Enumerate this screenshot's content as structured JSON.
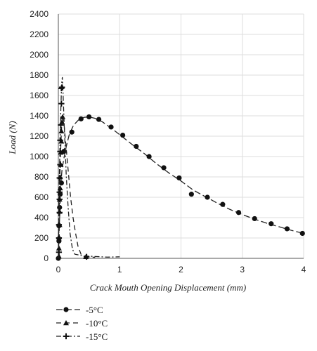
{
  "chart_data": {
    "type": "line",
    "title": "",
    "xlabel": "Crack Mouth Opening Displacement (mm)",
    "ylabel": "Load (N)",
    "xlim": [
      0,
      4
    ],
    "ylim": [
      0,
      2400
    ],
    "xticks": [
      0,
      1,
      2,
      3,
      4
    ],
    "yticks": [
      0,
      200,
      400,
      600,
      800,
      1000,
      1200,
      1400,
      1600,
      1800,
      2000,
      2200,
      2400
    ],
    "grid": true,
    "legend": "bottom-left",
    "series": [
      {
        "name": "-5°C",
        "marker": "circle",
        "dash": "dash",
        "curve": [
          [
            0,
            0
          ],
          [
            0.01,
            200
          ],
          [
            0.02,
            380
          ],
          [
            0.03,
            560
          ],
          [
            0.04,
            730
          ],
          [
            0.06,
            870
          ],
          [
            0.09,
            980
          ],
          [
            0.13,
            1100
          ],
          [
            0.18,
            1220
          ],
          [
            0.25,
            1310
          ],
          [
            0.33,
            1360
          ],
          [
            0.42,
            1385
          ],
          [
            0.5,
            1390
          ],
          [
            0.6,
            1375
          ],
          [
            0.72,
            1340
          ],
          [
            0.86,
            1280
          ],
          [
            1.0,
            1215
          ],
          [
            1.2,
            1120
          ],
          [
            1.4,
            1030
          ],
          [
            1.6,
            930
          ],
          [
            1.8,
            840
          ],
          [
            2.0,
            760
          ],
          [
            2.2,
            670
          ],
          [
            2.4,
            605
          ],
          [
            2.6,
            540
          ],
          [
            2.8,
            480
          ],
          [
            3.0,
            430
          ],
          [
            3.2,
            385
          ],
          [
            3.4,
            345
          ],
          [
            3.6,
            310
          ],
          [
            3.8,
            275
          ],
          [
            4.0,
            245
          ]
        ],
        "markers": [
          [
            0.0,
            0
          ],
          [
            0.01,
            170
          ],
          [
            0.01,
            320
          ],
          [
            0.02,
            500
          ],
          [
            0.03,
            630
          ],
          [
            0.05,
            740
          ],
          [
            0.09,
            1050
          ],
          [
            0.22,
            1240
          ],
          [
            0.37,
            1370
          ],
          [
            0.5,
            1390
          ],
          [
            0.66,
            1365
          ],
          [
            0.86,
            1290
          ],
          [
            1.05,
            1210
          ],
          [
            1.27,
            1100
          ],
          [
            1.48,
            1000
          ],
          [
            1.72,
            890
          ],
          [
            1.97,
            790
          ],
          [
            2.17,
            630
          ],
          [
            2.43,
            600
          ],
          [
            2.68,
            530
          ],
          [
            2.94,
            450
          ],
          [
            3.2,
            390
          ],
          [
            3.47,
            340
          ],
          [
            3.73,
            290
          ],
          [
            3.98,
            245
          ]
        ]
      },
      {
        "name": "-10°C",
        "marker": "triangle",
        "dash": "longdash",
        "curve": [
          [
            0,
            0
          ],
          [
            0.005,
            150
          ],
          [
            0.01,
            320
          ],
          [
            0.015,
            500
          ],
          [
            0.02,
            700
          ],
          [
            0.03,
            900
          ],
          [
            0.04,
            1100
          ],
          [
            0.05,
            1250
          ],
          [
            0.06,
            1360
          ],
          [
            0.07,
            1400
          ],
          [
            0.09,
            1340
          ],
          [
            0.11,
            1200
          ],
          [
            0.14,
            1000
          ],
          [
            0.17,
            800
          ],
          [
            0.2,
            600
          ],
          [
            0.24,
            400
          ],
          [
            0.28,
            250
          ],
          [
            0.32,
            120
          ],
          [
            0.37,
            40
          ],
          [
            0.45,
            15
          ],
          [
            0.6,
            10
          ]
        ],
        "markers": [
          [
            0.01,
            20
          ],
          [
            0.01,
            100
          ],
          [
            0.01,
            210
          ],
          [
            0.02,
            330
          ],
          [
            0.02,
            460
          ],
          [
            0.02,
            580
          ],
          [
            0.03,
            690
          ],
          [
            0.03,
            800
          ],
          [
            0.04,
            920
          ],
          [
            0.04,
            1040
          ],
          [
            0.05,
            1150
          ],
          [
            0.05,
            1250
          ],
          [
            0.06,
            1340
          ],
          [
            0.07,
            1390
          ],
          [
            0.1,
            1060
          ],
          [
            0.45,
            15
          ]
        ]
      },
      {
        "name": "-15°C",
        "marker": "plus",
        "dash": "dashdot",
        "curve": [
          [
            0,
            0
          ],
          [
            0.005,
            300
          ],
          [
            0.01,
            600
          ],
          [
            0.02,
            900
          ],
          [
            0.03,
            1200
          ],
          [
            0.04,
            1450
          ],
          [
            0.05,
            1650
          ],
          [
            0.055,
            1720
          ],
          [
            0.065,
            1780
          ],
          [
            0.075,
            1650
          ],
          [
            0.09,
            1400
          ],
          [
            0.11,
            1100
          ],
          [
            0.13,
            800
          ],
          [
            0.16,
            500
          ],
          [
            0.19,
            250
          ],
          [
            0.23,
            90
          ],
          [
            0.27,
            40
          ],
          [
            0.4,
            25
          ],
          [
            0.6,
            18
          ],
          [
            0.8,
            12
          ],
          [
            1.0,
            15
          ]
        ],
        "markers": [
          [
            0.01,
            60
          ],
          [
            0.01,
            200
          ],
          [
            0.01,
            330
          ],
          [
            0.02,
            450
          ],
          [
            0.02,
            580
          ],
          [
            0.02,
            650
          ],
          [
            0.02,
            790
          ],
          [
            0.03,
            920
          ],
          [
            0.03,
            1050
          ],
          [
            0.03,
            1160
          ],
          [
            0.04,
            1310
          ],
          [
            0.05,
            1520
          ],
          [
            0.05,
            1670
          ],
          [
            0.06,
            1680
          ],
          [
            0.46,
            15
          ]
        ]
      }
    ]
  }
}
